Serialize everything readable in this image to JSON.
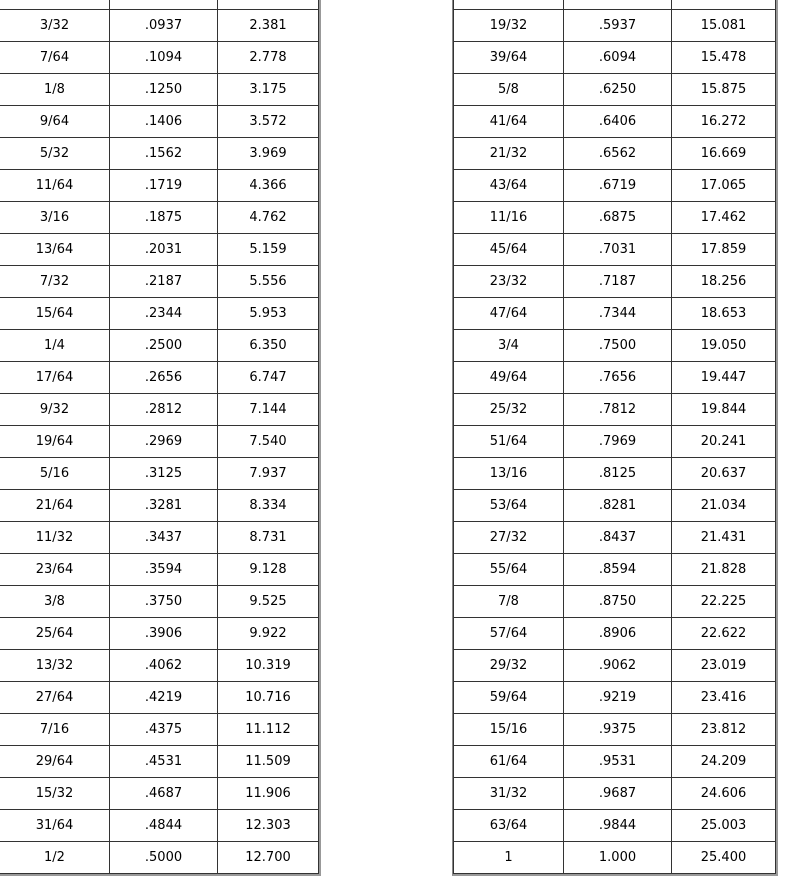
{
  "left_table": [
    [
      "3/32",
      ".0937",
      "2.381"
    ],
    [
      "7/64",
      ".1094",
      "2.778"
    ],
    [
      "1/8",
      ".1250",
      "3.175"
    ],
    [
      "9/64",
      ".1406",
      "3.572"
    ],
    [
      "5/32",
      ".1562",
      "3.969"
    ],
    [
      "11/64",
      ".1719",
      "4.366"
    ],
    [
      "3/16",
      ".1875",
      "4.762"
    ],
    [
      "13/64",
      ".2031",
      "5.159"
    ],
    [
      "7/32",
      ".2187",
      "5.556"
    ],
    [
      "15/64",
      ".2344",
      "5.953"
    ],
    [
      "1/4",
      ".2500",
      "6.350"
    ],
    [
      "17/64",
      ".2656",
      "6.747"
    ],
    [
      "9/32",
      ".2812",
      "7.144"
    ],
    [
      "19/64",
      ".2969",
      "7.540"
    ],
    [
      "5/16",
      ".3125",
      "7.937"
    ],
    [
      "21/64",
      ".3281",
      "8.334"
    ],
    [
      "11/32",
      ".3437",
      "8.731"
    ],
    [
      "23/64",
      ".3594",
      "9.128"
    ],
    [
      "3/8",
      ".3750",
      "9.525"
    ],
    [
      "25/64",
      ".3906",
      "9.922"
    ],
    [
      "13/32",
      ".4062",
      "10.319"
    ],
    [
      "27/64",
      ".4219",
      "10.716"
    ],
    [
      "7/16",
      ".4375",
      "11.112"
    ],
    [
      "29/64",
      ".4531",
      "11.509"
    ],
    [
      "15/32",
      ".4687",
      "11.906"
    ],
    [
      "31/64",
      ".4844",
      "12.303"
    ],
    [
      "1/2",
      ".5000",
      "12.700"
    ]
  ],
  "right_table": [
    [
      "19/32",
      ".5937",
      "15.081"
    ],
    [
      "39/64",
      ".6094",
      "15.478"
    ],
    [
      "5/8",
      ".6250",
      "15.875"
    ],
    [
      "41/64",
      ".6406",
      "16.272"
    ],
    [
      "21/32",
      ".6562",
      "16.669"
    ],
    [
      "43/64",
      ".6719",
      "17.065"
    ],
    [
      "11/16",
      ".6875",
      "17.462"
    ],
    [
      "45/64",
      ".7031",
      "17.859"
    ],
    [
      "23/32",
      ".7187",
      "18.256"
    ],
    [
      "47/64",
      ".7344",
      "18.653"
    ],
    [
      "3/4",
      ".7500",
      "19.050"
    ],
    [
      "49/64",
      ".7656",
      "19.447"
    ],
    [
      "25/32",
      ".7812",
      "19.844"
    ],
    [
      "51/64",
      ".7969",
      "20.241"
    ],
    [
      "13/16",
      ".8125",
      "20.637"
    ],
    [
      "53/64",
      ".8281",
      "21.034"
    ],
    [
      "27/32",
      ".8437",
      "21.431"
    ],
    [
      "55/64",
      ".8594",
      "21.828"
    ],
    [
      "7/8",
      ".8750",
      "22.225"
    ],
    [
      "57/64",
      ".8906",
      "22.622"
    ],
    [
      "29/32",
      ".9062",
      "23.019"
    ],
    [
      "59/64",
      ".9219",
      "23.416"
    ],
    [
      "15/16",
      ".9375",
      "23.812"
    ],
    [
      "61/64",
      ".9531",
      "24.209"
    ],
    [
      "31/32",
      ".9687",
      "24.606"
    ],
    [
      "63/64",
      ".9844",
      "25.003"
    ],
    [
      "1",
      "1.000",
      "25.400"
    ]
  ]
}
